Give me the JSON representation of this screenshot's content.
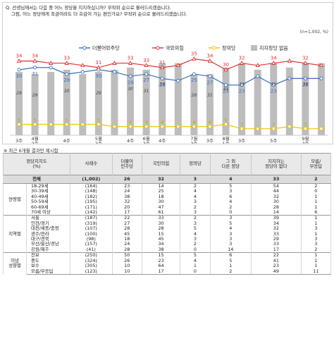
{
  "question": {
    "line1": "Q. 선생님께서는 다음 중 어느 정당을 지지하십니까? 무작위 순으로 불러드리겠습니다.",
    "line2": "그럼, 어느 정당에게 조금이라도 더 호감이 가는 편인가요? 무작위 순으로 불러드리겠습니다.",
    "sample_note": "(n=1,002, %)"
  },
  "legend": [
    {
      "label": "더불어민주당",
      "color": "#3a6fbf"
    },
    {
      "label": "국민의힘",
      "color": "#e03131"
    },
    {
      "label": "정의당",
      "color": "#f2c400"
    },
    {
      "label": "지지정당 없음",
      "color": "#bdbdbd"
    }
  ],
  "chart_data": {
    "type": "line",
    "x": [
      "3주",
      "4주",
      "4월 2주",
      "3주",
      "4주",
      "5월 2주",
      "3주",
      "4주",
      "6월 2주",
      "3주",
      "4주",
      "7월 1주",
      "2주",
      "3주",
      "4주",
      "8월 1주",
      "3주",
      "4주",
      "5주",
      "9월 2주"
    ],
    "x_labels_shown": [
      "3주",
      "4월 2주",
      "4주",
      "5월 2주",
      "4주",
      "6월 2주",
      "4주",
      "7월 2주",
      "3주",
      "8월 1주",
      "3주",
      "5주",
      "9월 2주"
    ],
    "series": [
      {
        "name": "더불어민주당",
        "color": "#3a6fbf",
        "values": [
          30,
          31,
          31,
          28,
          29,
          30,
          29,
          27,
          28,
          26,
          25,
          28,
          27,
          23,
          23,
          27,
          23,
          26,
          26,
          26
        ],
        "shown_labels": [
          30,
          31,
          28,
          30,
          29,
          27,
          28,
          25,
          27,
          23,
          23,
          23,
          26
        ]
      },
      {
        "name": "국민의힘",
        "color": "#e03131",
        "values": [
          34,
          34,
          33,
          33,
          32,
          31,
          33,
          33,
          32,
          31,
          32,
          35,
          34,
          30,
          33,
          32,
          33,
          34,
          33,
          32
        ],
        "shown_labels": [
          34,
          34,
          33,
          31,
          33,
          33,
          31,
          35,
          34,
          30,
          32,
          34,
          32
        ]
      },
      {
        "name": "정의당",
        "color": "#f2c400",
        "values": [
          5,
          5,
          5,
          5,
          5,
          5,
          4,
          4,
          4,
          4,
          4,
          4,
          4,
          5,
          3,
          3,
          3,
          4,
          3,
          3
        ]
      },
      {
        "name": "지지정당 없음",
        "color": "#bdbdbd",
        "values": [
          29,
          28,
          29,
          30,
          28,
          29,
          30,
          31,
          30,
          33,
          33,
          28,
          28,
          31,
          33,
          30,
          33,
          31,
          33,
          33
        ],
        "shown_labels": [
          29,
          29,
          30,
          29,
          30,
          31,
          33,
          28,
          31,
          33,
          33,
          31,
          33
        ]
      }
    ],
    "ylim": [
      0,
      45
    ]
  },
  "footnote": "※ 최근 6개월 결과만 제시함",
  "table": {
    "headers": [
      "정당지지도\n(%)",
      "사례수",
      "더불어\n민주당",
      "국민의힘",
      "정의당",
      "그 외\n다른 정당",
      "지지하는\n정당이 없다",
      "모름/\n무응답"
    ],
    "total": {
      "label": "전체",
      "n": "(1,002)",
      "values": [
        "26",
        "32",
        "3",
        "4",
        "33",
        "2"
      ]
    },
    "groups": [
      {
        "name": "연령별",
        "rows": [
          {
            "label": "18-29세",
            "n": "(164)",
            "values": [
              "23",
              "14",
              "2",
              "5",
              "54",
              "2"
            ]
          },
          {
            "label": "30-39세",
            "n": "(148)",
            "values": [
              "24",
              "25",
              "4",
              "3",
              "44",
              "0"
            ]
          },
          {
            "label": "40-49세",
            "n": "(182)",
            "values": [
              "38",
              "18",
              "4",
              "6",
              "32",
              "1"
            ]
          },
          {
            "label": "50-59세",
            "n": "(195)",
            "values": [
              "32",
              "30",
              "3",
              "4",
              "30",
              "1"
            ]
          },
          {
            "label": "60-69세",
            "n": "(171)",
            "values": [
              "20",
              "47",
              "2",
              "2",
              "28",
              "1"
            ]
          },
          {
            "label": "70세 이상",
            "n": "(142)",
            "values": [
              "17",
              "61",
              "3",
              "0",
              "14",
              "6"
            ]
          }
        ]
      },
      {
        "name": "지역별",
        "rows": [
          {
            "label": "서울",
            "n": "(187)",
            "values": [
              "22",
              "33",
              "2",
              "3",
              "39",
              "1"
            ]
          },
          {
            "label": "인천/경기",
            "n": "(319)",
            "values": [
              "27",
              "30",
              "3",
              "5",
              "34",
              "1"
            ]
          },
          {
            "label": "대전/세종/충청",
            "n": "(107)",
            "values": [
              "28",
              "28",
              "5",
              "4",
              "32",
              "3"
            ]
          },
          {
            "label": "광주/전라",
            "n": "(100)",
            "values": [
              "45",
              "15",
              "4",
              "3",
              "33",
              "1"
            ]
          },
          {
            "label": "대구/경북",
            "n": "(98)",
            "values": [
              "18",
              "45",
              "3",
              "3",
              "29",
              "3"
            ]
          },
          {
            "label": "부산/울산/경남",
            "n": "(157)",
            "values": [
              "24",
              "34",
              "2",
              "3",
              "33",
              "3"
            ]
          },
          {
            "label": "강원/제주",
            "n": "(41)",
            "values": [
              "28",
              "38",
              "0",
              "14",
              "17",
              "2"
            ]
          }
        ]
      },
      {
        "name": "이념\n성향별",
        "rows": [
          {
            "label": "진보",
            "n": "(250)",
            "values": [
              "50",
              "15",
              "5",
              "6",
              "22",
              "1"
            ]
          },
          {
            "label": "중도",
            "n": "(324)",
            "values": [
              "26",
              "23",
              "4",
              "5",
              "41",
              "1"
            ]
          },
          {
            "label": "보수",
            "n": "(305)",
            "values": [
              "10",
              "64",
              "1",
              "1",
              "23",
              "1"
            ]
          },
          {
            "label": "모름/무응답",
            "n": "(123)",
            "values": [
              "10",
              "17",
              "0",
              "2",
              "49",
              "11"
            ]
          }
        ]
      }
    ]
  }
}
